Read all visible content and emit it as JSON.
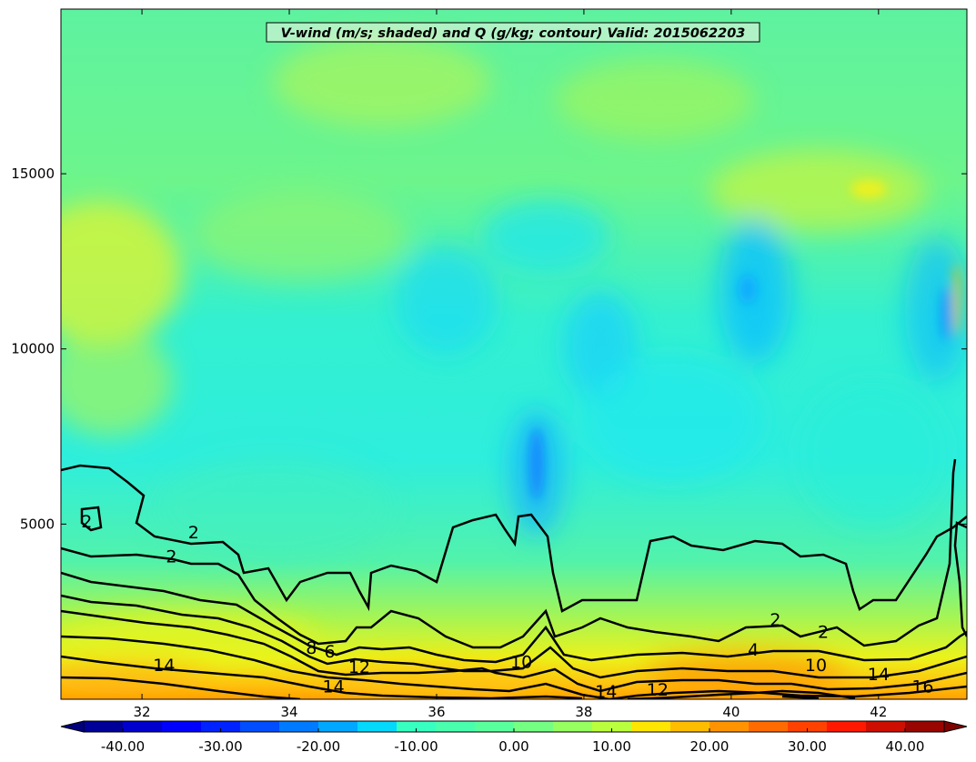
{
  "chart_data": {
    "type": "filled-contour",
    "title": "V-wind (m/s; shaded) and Q (g/kg; contour) Valid: 2015062203",
    "xlabel": "",
    "ylabel": "",
    "xlim": [
      30.9,
      43.2
    ],
    "ylim": [
      0,
      19700
    ],
    "x_ticks": [
      32,
      34,
      36,
      38,
      40,
      42
    ],
    "y_ticks": [
      5000,
      10000,
      15000
    ],
    "shaded_variable": "V-wind (m/s)",
    "contour_variable": "Q (g/kg)",
    "colorbar": {
      "min": -44,
      "max": 44,
      "step": 4,
      "extend": "both",
      "tick_values": [
        -40,
        -30,
        -20,
        -10,
        0,
        10,
        20,
        30,
        40
      ],
      "tick_labels": [
        "-40.00",
        "-30.00",
        "-20.00",
        "-10.00",
        "0.00",
        "10.00",
        "20.00",
        "30.00",
        "40.00"
      ]
    },
    "contour_levels": [
      2,
      4,
      6,
      8,
      10,
      12,
      14,
      16
    ],
    "contour_labels": [
      {
        "text": "2",
        "x": 31.25,
        "y": 4900
      },
      {
        "text": "2",
        "x": 32.7,
        "y": 4600
      },
      {
        "text": "2",
        "x": 32.4,
        "y": 3900
      },
      {
        "text": "14",
        "x": 32.3,
        "y": 800
      },
      {
        "text": "8",
        "x": 34.3,
        "y": 1300
      },
      {
        "text": "6",
        "x": 34.55,
        "y": 1200
      },
      {
        "text": "12",
        "x": 34.95,
        "y": 750
      },
      {
        "text": "14",
        "x": 34.6,
        "y": 200
      },
      {
        "text": "10",
        "x": 37.15,
        "y": 900
      },
      {
        "text": "14",
        "x": 38.3,
        "y": 50
      },
      {
        "text": "12",
        "x": 39.0,
        "y": 100
      },
      {
        "text": "2",
        "x": 40.6,
        "y": 2100
      },
      {
        "text": "2",
        "x": 41.25,
        "y": 1750
      },
      {
        "text": "4",
        "x": 40.3,
        "y": 1250
      },
      {
        "text": "10",
        "x": 41.15,
        "y": 800
      },
      {
        "text": "14",
        "x": 42.0,
        "y": 550
      },
      {
        "text": "16",
        "x": 42.6,
        "y": 200
      }
    ]
  }
}
